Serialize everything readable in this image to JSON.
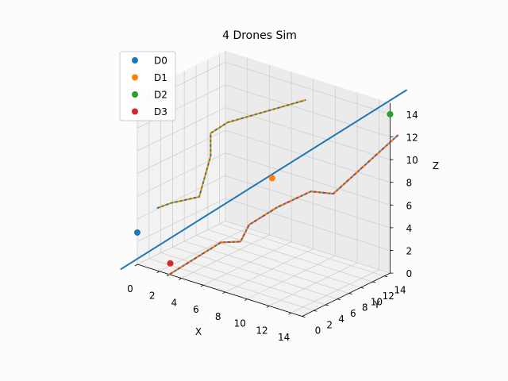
{
  "chart_data": {
    "type": "line3d",
    "title": "4 Drones Sim",
    "xlabel": "X",
    "ylabel": "Y",
    "zlabel": "Z",
    "xlim": [
      0,
      15
    ],
    "ylim": [
      0,
      15
    ],
    "zlim": [
      0,
      15
    ],
    "xticks": [
      "0",
      "2",
      "4",
      "6",
      "8",
      "10",
      "12",
      "14"
    ],
    "yticks": [
      "0",
      "2",
      "4",
      "6",
      "8",
      "10",
      "12",
      "14"
    ],
    "zticks": [
      "0",
      "2",
      "4",
      "6",
      "8",
      "10",
      "12",
      "14"
    ],
    "grid": true,
    "legend_position": "top-left",
    "series": [
      {
        "name": "D0",
        "color": "#1f77b4",
        "marker": {
          "x": 0,
          "y": 0,
          "z": 2.8
        },
        "path": [
          [
            -1.0,
            -1.0,
            -0.5
          ],
          [
            16.0,
            16.0,
            16.2
          ]
        ]
      },
      {
        "name": "D1",
        "color": "#ff7f0e",
        "marker": {
          "x": 8,
          "y": 8,
          "z": 8
        },
        "path": [
          [
            1.8,
            0,
            5.5
          ],
          [
            2,
            2,
            5.5
          ],
          [
            3.5,
            4,
            6
          ],
          [
            4,
            5,
            9.5
          ],
          [
            4,
            5,
            11.5
          ],
          [
            5,
            6,
            12.5
          ],
          [
            10,
            10,
            15
          ]
        ]
      },
      {
        "name": "D2",
        "color": "#2ca02c",
        "marker": {
          "x": 15,
          "y": 15,
          "z": 14
        },
        "path": [
          [
            2.7,
            0,
            -0.2
          ],
          [
            6,
            3,
            3
          ],
          [
            7,
            4.5,
            3
          ],
          [
            7.5,
            5,
            4.5
          ],
          [
            9,
            7,
            6
          ],
          [
            11,
            9,
            7.5
          ],
          [
            12.5,
            10,
            7.5
          ],
          [
            16,
            14.5,
            12.6
          ]
        ]
      },
      {
        "name": "D3",
        "color": "#d62728",
        "marker": {
          "x": 3,
          "y": 0,
          "z": 1
        },
        "path": [
          [
            2.7,
            0,
            -0.2
          ],
          [
            6,
            3,
            3
          ],
          [
            7,
            4.5,
            3
          ],
          [
            7.5,
            5,
            4.5
          ],
          [
            9,
            7,
            6
          ],
          [
            11,
            9,
            7.5
          ],
          [
            12.5,
            10,
            7.5
          ],
          [
            16,
            14.5,
            12.6
          ]
        ]
      }
    ]
  }
}
